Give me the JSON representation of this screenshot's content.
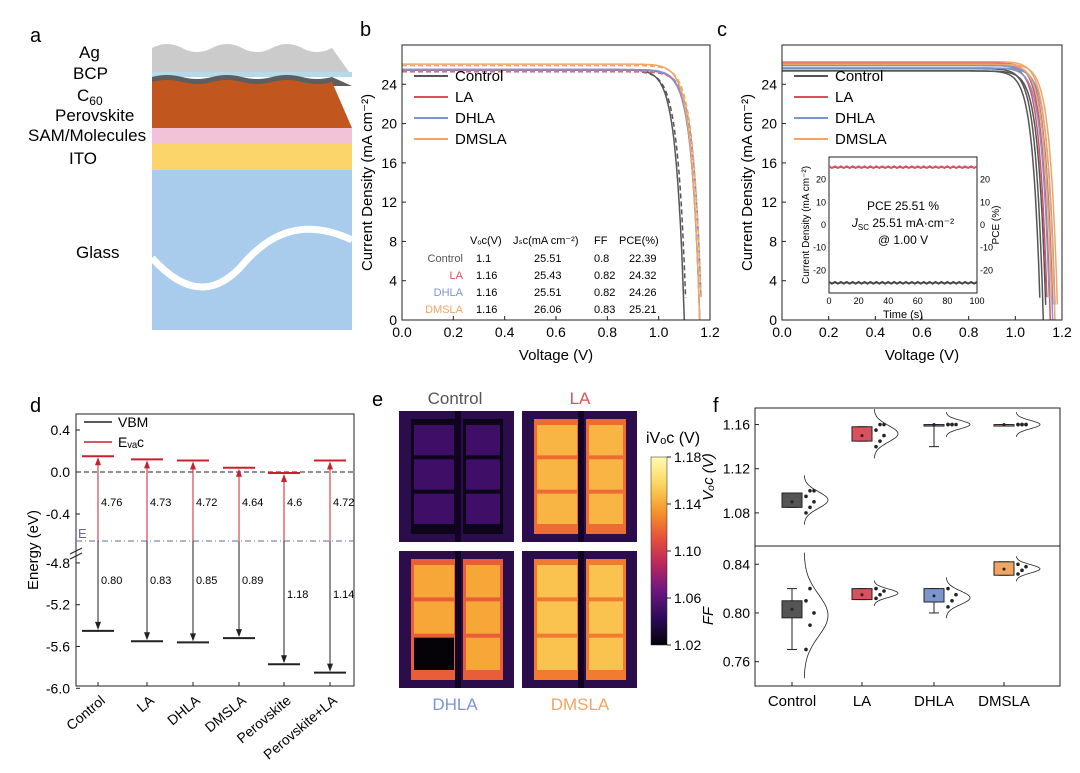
{
  "panels": {
    "a": "a",
    "b": "b",
    "c": "c",
    "d": "d",
    "e": "e",
    "f": "f"
  },
  "colors": {
    "control": "#555555",
    "la": "#d9515e",
    "dhla": "#7d95cf",
    "dmsla": "#f0a565",
    "grid": "#cccccc"
  },
  "layers": {
    "ag": "Ag",
    "bcp": "BCP",
    "c60_base": "C",
    "c60_sub": "60",
    "perovskite": "Perovskite",
    "sam": "SAM/Molecules",
    "ito": "ITO",
    "glass": "Glass"
  },
  "chart_data": [
    {
      "id": "b",
      "type": "line",
      "xlabel": "Voltage (V)",
      "ylabel": "Current Density (mA cm⁻²)",
      "xlim": [
        0,
        1.2
      ],
      "ylim": [
        0,
        28
      ],
      "xticks": [
        "0.0",
        "0.2",
        "0.4",
        "0.6",
        "0.8",
        "1.0",
        "1.2"
      ],
      "yticks": [
        "0",
        "4",
        "8",
        "12",
        "16",
        "20",
        "24"
      ],
      "legend": [
        "Control",
        "LA",
        "DHLA",
        "DMSLA"
      ],
      "series": [
        {
          "name": "Control",
          "jsc": 25.51,
          "voc": 1.1,
          "ff": 0.8
        },
        {
          "name": "LA",
          "jsc": 25.43,
          "voc": 1.16,
          "ff": 0.82
        },
        {
          "name": "DHLA",
          "jsc": 25.51,
          "voc": 1.16,
          "ff": 0.82
        },
        {
          "name": "DMSLA",
          "jsc": 26.06,
          "voc": 1.16,
          "ff": 0.83
        }
      ],
      "table": {
        "headers": [
          "Vₒᴄ(V)",
          "Jₛᴄ(mA cm⁻²)",
          "FF",
          "PCE(%)"
        ],
        "rows": [
          {
            "name": "Control",
            "voc": "1.1",
            "jsc": "25.51",
            "ff": "0.8",
            "pce": "22.39"
          },
          {
            "name": "LA",
            "voc": "1.16",
            "jsc": "25.43",
            "ff": "0.82",
            "pce": "24.32"
          },
          {
            "name": "DHLA",
            "voc": "1.16",
            "jsc": "25.51",
            "ff": "0.82",
            "pce": "24.26"
          },
          {
            "name": "DMSLA",
            "voc": "1.16",
            "jsc": "26.06",
            "ff": "0.83",
            "pce": "25.21"
          }
        ]
      }
    },
    {
      "id": "c",
      "type": "line",
      "xlabel": "Voltage (V)",
      "ylabel": "Current Density (mA cm⁻²)",
      "xlim": [
        0,
        1.2
      ],
      "ylim": [
        0,
        28
      ],
      "xticks": [
        "0.0",
        "0.2",
        "0.4",
        "0.6",
        "0.8",
        "1.0",
        "1.2"
      ],
      "yticks": [
        "0",
        "4",
        "8",
        "12",
        "16",
        "20",
        "24"
      ],
      "legend": [
        "Control",
        "LA",
        "DHLA",
        "DMSLA"
      ],
      "series": [
        {
          "name": "Control",
          "jsc": 25.6,
          "voc": 1.12,
          "ff": 0.8
        },
        {
          "name": "LA",
          "jsc": 26.2,
          "voc": 1.15,
          "ff": 0.82
        },
        {
          "name": "DHLA",
          "jsc": 25.9,
          "voc": 1.16,
          "ff": 0.82
        },
        {
          "name": "DMSLA",
          "jsc": 26.3,
          "voc": 1.17,
          "ff": 0.83
        }
      ],
      "inset": {
        "xlabel": "Time (s)",
        "ylabel_left": "Current Density (mA cm⁻²)",
        "ylabel_right": "PCE (%)",
        "xlim": [
          0,
          100
        ],
        "ylim": [
          -30,
          30
        ],
        "xticks": [
          "0",
          "20",
          "40",
          "60",
          "80",
          "100"
        ],
        "yticks_left": [
          "20",
          "10",
          "0",
          "-10",
          "-20"
        ],
        "yticks_right": [
          "20",
          "10",
          "0",
          "-10",
          "-20"
        ],
        "pce_value": 25.51,
        "jsc_value": -25.51,
        "line1": "PCE  25.51 %",
        "line2_sub": "SC",
        "line2_rest": "  25.51 mA·cm⁻²",
        "line3": "@ 1.00 V"
      }
    },
    {
      "id": "d",
      "type": "bar",
      "ylabel": "Energy (eV)",
      "yticks": [
        "0.4",
        "0.0",
        "-0.4",
        "-4.8",
        "-5.2",
        "-5.6",
        "-6.0"
      ],
      "ef_label": "E",
      "legend": [
        "VBM",
        "Eᵥₐᴄ"
      ],
      "categories": [
        "Control",
        "LA",
        "DHLA",
        "DMSLA",
        "Perovskite",
        "Perovskite+LA"
      ],
      "evac": [
        0.15,
        0.12,
        0.11,
        0.04,
        -0.01,
        0.11
      ],
      "vbm": [
        -5.45,
        -5.55,
        -5.56,
        -5.52,
        -5.77,
        -5.85
      ],
      "workfunction": [
        "4.76",
        "4.73",
        "4.72",
        "4.64",
        "4.6",
        "4.72"
      ],
      "vbm_ef": [
        "0.80",
        "0.83",
        "0.85",
        "0.89",
        "1.18",
        "1.14"
      ]
    },
    {
      "id": "e",
      "type": "heatmap",
      "labels": [
        "Control",
        "LA",
        "DHLA",
        "DMSLA"
      ],
      "colorbar_title": "iVₒᴄ (V)",
      "colorbar_ticks": [
        "1.18",
        "1.14",
        "1.10",
        "1.06",
        "1.02"
      ],
      "range": [
        1.02,
        1.18
      ],
      "panel_values": [
        1.05,
        1.145,
        1.14,
        1.15
      ]
    },
    {
      "id": "f",
      "type": "scatter",
      "categories": [
        "Control",
        "LA",
        "DHLA",
        "DMSLA"
      ],
      "top": {
        "ylabel": "Vₒᴄ (V)",
        "ylim": [
          1.05,
          1.175
        ],
        "yticks": [
          "1.16",
          "1.12",
          "1.08"
        ],
        "box": [
          [
            1.085,
            1.09,
            1.098
          ],
          [
            1.145,
            1.15,
            1.158
          ],
          [
            1.16,
            1.16,
            1.16
          ],
          [
            1.16,
            1.16,
            1.16
          ]
        ],
        "whisker": [
          [
            1.085,
            1.098
          ],
          [
            1.145,
            1.158
          ],
          [
            1.14,
            1.16
          ],
          [
            1.16,
            1.16
          ]
        ],
        "points": [
          [
            1.08,
            1.085,
            1.09,
            1.095,
            1.1,
            1.1
          ],
          [
            1.14,
            1.145,
            1.15,
            1.155,
            1.16,
            1.16
          ],
          [
            1.16,
            1.16,
            1.16,
            1.16,
            1.16
          ],
          [
            1.16,
            1.16,
            1.16,
            1.16,
            1.16,
            1.16
          ]
        ]
      },
      "bottom": {
        "ylabel": "FF",
        "ylim": [
          0.74,
          0.855
        ],
        "yticks": [
          "0.84",
          "0.80",
          "0.76"
        ],
        "box": [
          [
            0.796,
            0.803,
            0.81
          ],
          [
            0.811,
            0.815,
            0.82
          ],
          [
            0.809,
            0.814,
            0.82
          ],
          [
            0.831,
            0.836,
            0.842
          ]
        ],
        "whisker": [
          [
            0.77,
            0.82
          ],
          [
            0.811,
            0.82
          ],
          [
            0.8,
            0.82
          ],
          [
            0.831,
            0.842
          ]
        ],
        "points": [
          [
            0.77,
            0.79,
            0.8,
            0.81,
            0.82
          ],
          [
            0.812,
            0.815,
            0.818,
            0.82
          ],
          [
            0.805,
            0.81,
            0.815,
            0.82
          ],
          [
            0.832,
            0.835,
            0.838,
            0.84
          ]
        ]
      }
    }
  ]
}
